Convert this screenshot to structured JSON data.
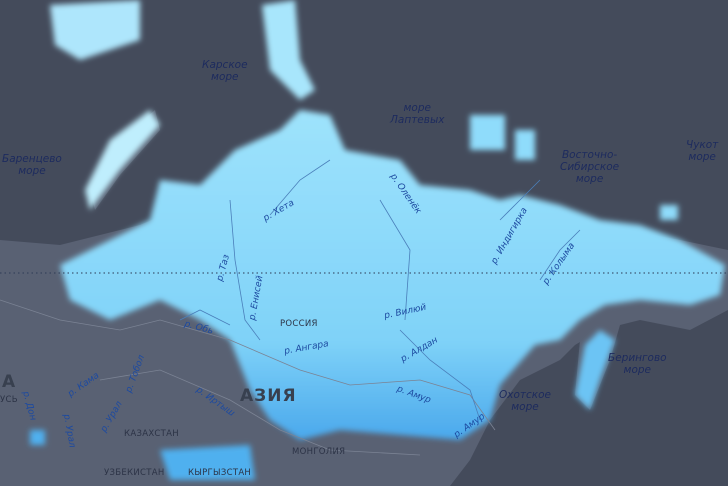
{
  "map": {
    "colors": {
      "water": "#444b5b",
      "land": "#596173",
      "snow_light": "#8fdcfb",
      "snow_mid": "#5bb8f0",
      "snow_dark": "#2f8fe0",
      "border": "#7a8090"
    },
    "seas": {
      "kara": "Карское\nморе",
      "laptev": "море\nЛаптевых",
      "barents": "Баренцево\nморе",
      "east_siberian": "Восточно-\nСибирское\nморе",
      "chukchi": "Чукот\nморе",
      "bering": "Берингово\nморе",
      "okhotsk": "Охотское\nморе"
    },
    "rivers": {
      "kheta": "р. Хета",
      "olenek": "р. Оленёк",
      "indigirka": "р. Индигирка",
      "kolyma": "р. Колыма",
      "taz": "р. Таз",
      "yenisei": "р. Енисей",
      "vilyuy": "р. Вилюй",
      "aldan": "р. Алдан",
      "angara": "р. Ангара",
      "ob": "р. Обь",
      "amur1": "р. Амур",
      "amur2": "р. Амур",
      "kama": "р. Кама",
      "tobol": "р. Тобол",
      "ural1": "р. Урал",
      "ural2": "р. Урал",
      "don": "р. Дон",
      "irtysh": "р. Иртыш"
    },
    "countries": {
      "russia": "РОССИЯ",
      "kazakhstan": "КАЗАХСТАН",
      "mongolia": "МОНГОЛИЯ",
      "uzbekistan": "УЗБЕКИСТАН",
      "kyrgyzstan": "КЫРГЫЗСТАН",
      "belarus_partial": "УСЬ"
    },
    "continents": {
      "asia": "АЗИЯ",
      "europe_partial": "А"
    }
  }
}
